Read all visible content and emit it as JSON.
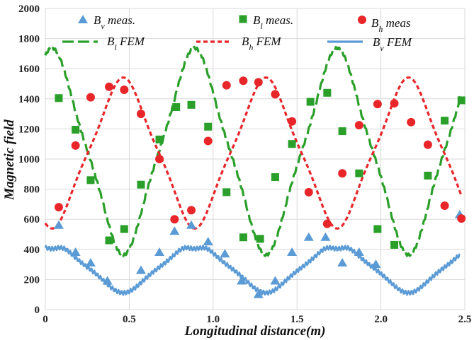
{
  "chart_data": {
    "type": "line",
    "xlabel": "Longitudinal distance(m)",
    "ylabel": "Magnetic field",
    "xlim": [
      0,
      2.5
    ],
    "ylim": [
      0,
      2000
    ],
    "xticks": [
      "0",
      "0.5",
      "1.0",
      "1.5",
      "2.0",
      "2.5"
    ],
    "yticks": [
      "0",
      "200",
      "400",
      "600",
      "800",
      "1000",
      "1200",
      "1400",
      "1600",
      "1800",
      "2000"
    ],
    "grid": true,
    "legend_position": "top",
    "colors": {
      "v": "#5b9bd5",
      "l": "#2aa02a",
      "h": "#e8262a"
    },
    "legend": [
      {
        "key": "v_meas",
        "label": "Bv meas.",
        "base": "B",
        "sub": "v",
        "rest": " meas."
      },
      {
        "key": "l_meas",
        "label": "Bl meas.",
        "base": "B",
        "sub": "l",
        "rest": " meas."
      },
      {
        "key": "h_meas",
        "label": "Bh meas",
        "base": "B",
        "sub": "h",
        "rest": " meas"
      },
      {
        "key": "l_fem",
        "label": "Bl FEM",
        "base": "B",
        "sub": "l",
        "rest": " FEM"
      },
      {
        "key": "h_fem",
        "label": "Bh FEM",
        "base": "B",
        "sub": "h",
        "rest": " FEM"
      },
      {
        "key": "v_fem",
        "label": "Bv FEM",
        "base": "B",
        "sub": "v",
        "rest": " FEM"
      }
    ],
    "series": [
      {
        "name": "Bv meas.",
        "kind": "scatter",
        "marker": "triangle",
        "color": "#5b9bd5",
        "x": [
          0.08,
          0.18,
          0.27,
          0.37,
          0.57,
          0.68,
          0.77,
          0.87,
          0.97,
          1.07,
          1.17,
          1.27,
          1.37,
          1.47,
          1.57,
          1.67,
          1.77,
          1.87,
          1.97,
          2.47
        ],
        "y": [
          560,
          380,
          310,
          190,
          260,
          380,
          520,
          560,
          450,
          370,
          190,
          100,
          190,
          380,
          480,
          480,
          310,
          380,
          300,
          630
        ]
      },
      {
        "name": "Bl meas.",
        "kind": "scatter",
        "marker": "square",
        "color": "#2aa02a",
        "x": [
          0.08,
          0.18,
          0.27,
          0.38,
          0.47,
          0.57,
          0.68,
          0.78,
          0.87,
          0.97,
          1.08,
          1.18,
          1.28,
          1.37,
          1.47,
          1.58,
          1.68,
          1.77,
          1.87,
          1.98,
          2.08,
          2.28,
          2.38,
          2.48
        ],
        "y": [
          1405,
          1195,
          860,
          460,
          535,
          830,
          1130,
          1345,
          1360,
          1215,
          780,
          480,
          470,
          880,
          1100,
          1380,
          1440,
          1185,
          905,
          535,
          430,
          890,
          1255,
          1390
        ]
      },
      {
        "name": "Bh meas",
        "kind": "scatter",
        "marker": "circle",
        "color": "#e8262a",
        "x": [
          0.08,
          0.18,
          0.27,
          0.38,
          0.47,
          0.57,
          0.68,
          0.77,
          0.87,
          0.97,
          1.08,
          1.18,
          1.27,
          1.37,
          1.47,
          1.57,
          1.68,
          1.77,
          1.87,
          1.98,
          2.08,
          2.18,
          2.28,
          2.38,
          2.48
        ],
        "y": [
          680,
          1090,
          1410,
          1480,
          1460,
          1300,
          1000,
          600,
          660,
          1120,
          1490,
          1520,
          1510,
          1430,
          1250,
          780,
          570,
          905,
          1225,
          1365,
          1370,
          1245,
          1095,
          690,
          605
        ]
      },
      {
        "name": "Bl FEM",
        "kind": "line",
        "style": "long-dash",
        "color": "#2aa02a",
        "fn": "0.04:1050:630:0.85:0:9:0",
        "x_end": 2.48
      },
      {
        "name": "Bh FEM",
        "kind": "line",
        "style": "short-dash",
        "color": "#e8262a",
        "fn": "0.04:1040:-460:0.85:0:0:0",
        "x_end": 2.48
      },
      {
        "name": "Bv FEM",
        "kind": "line",
        "style": "solid",
        "color": "#5b9bd5",
        "fn": "0.04:280:155:0.85:0:14:45",
        "x_end": 2.47
      }
    ]
  }
}
